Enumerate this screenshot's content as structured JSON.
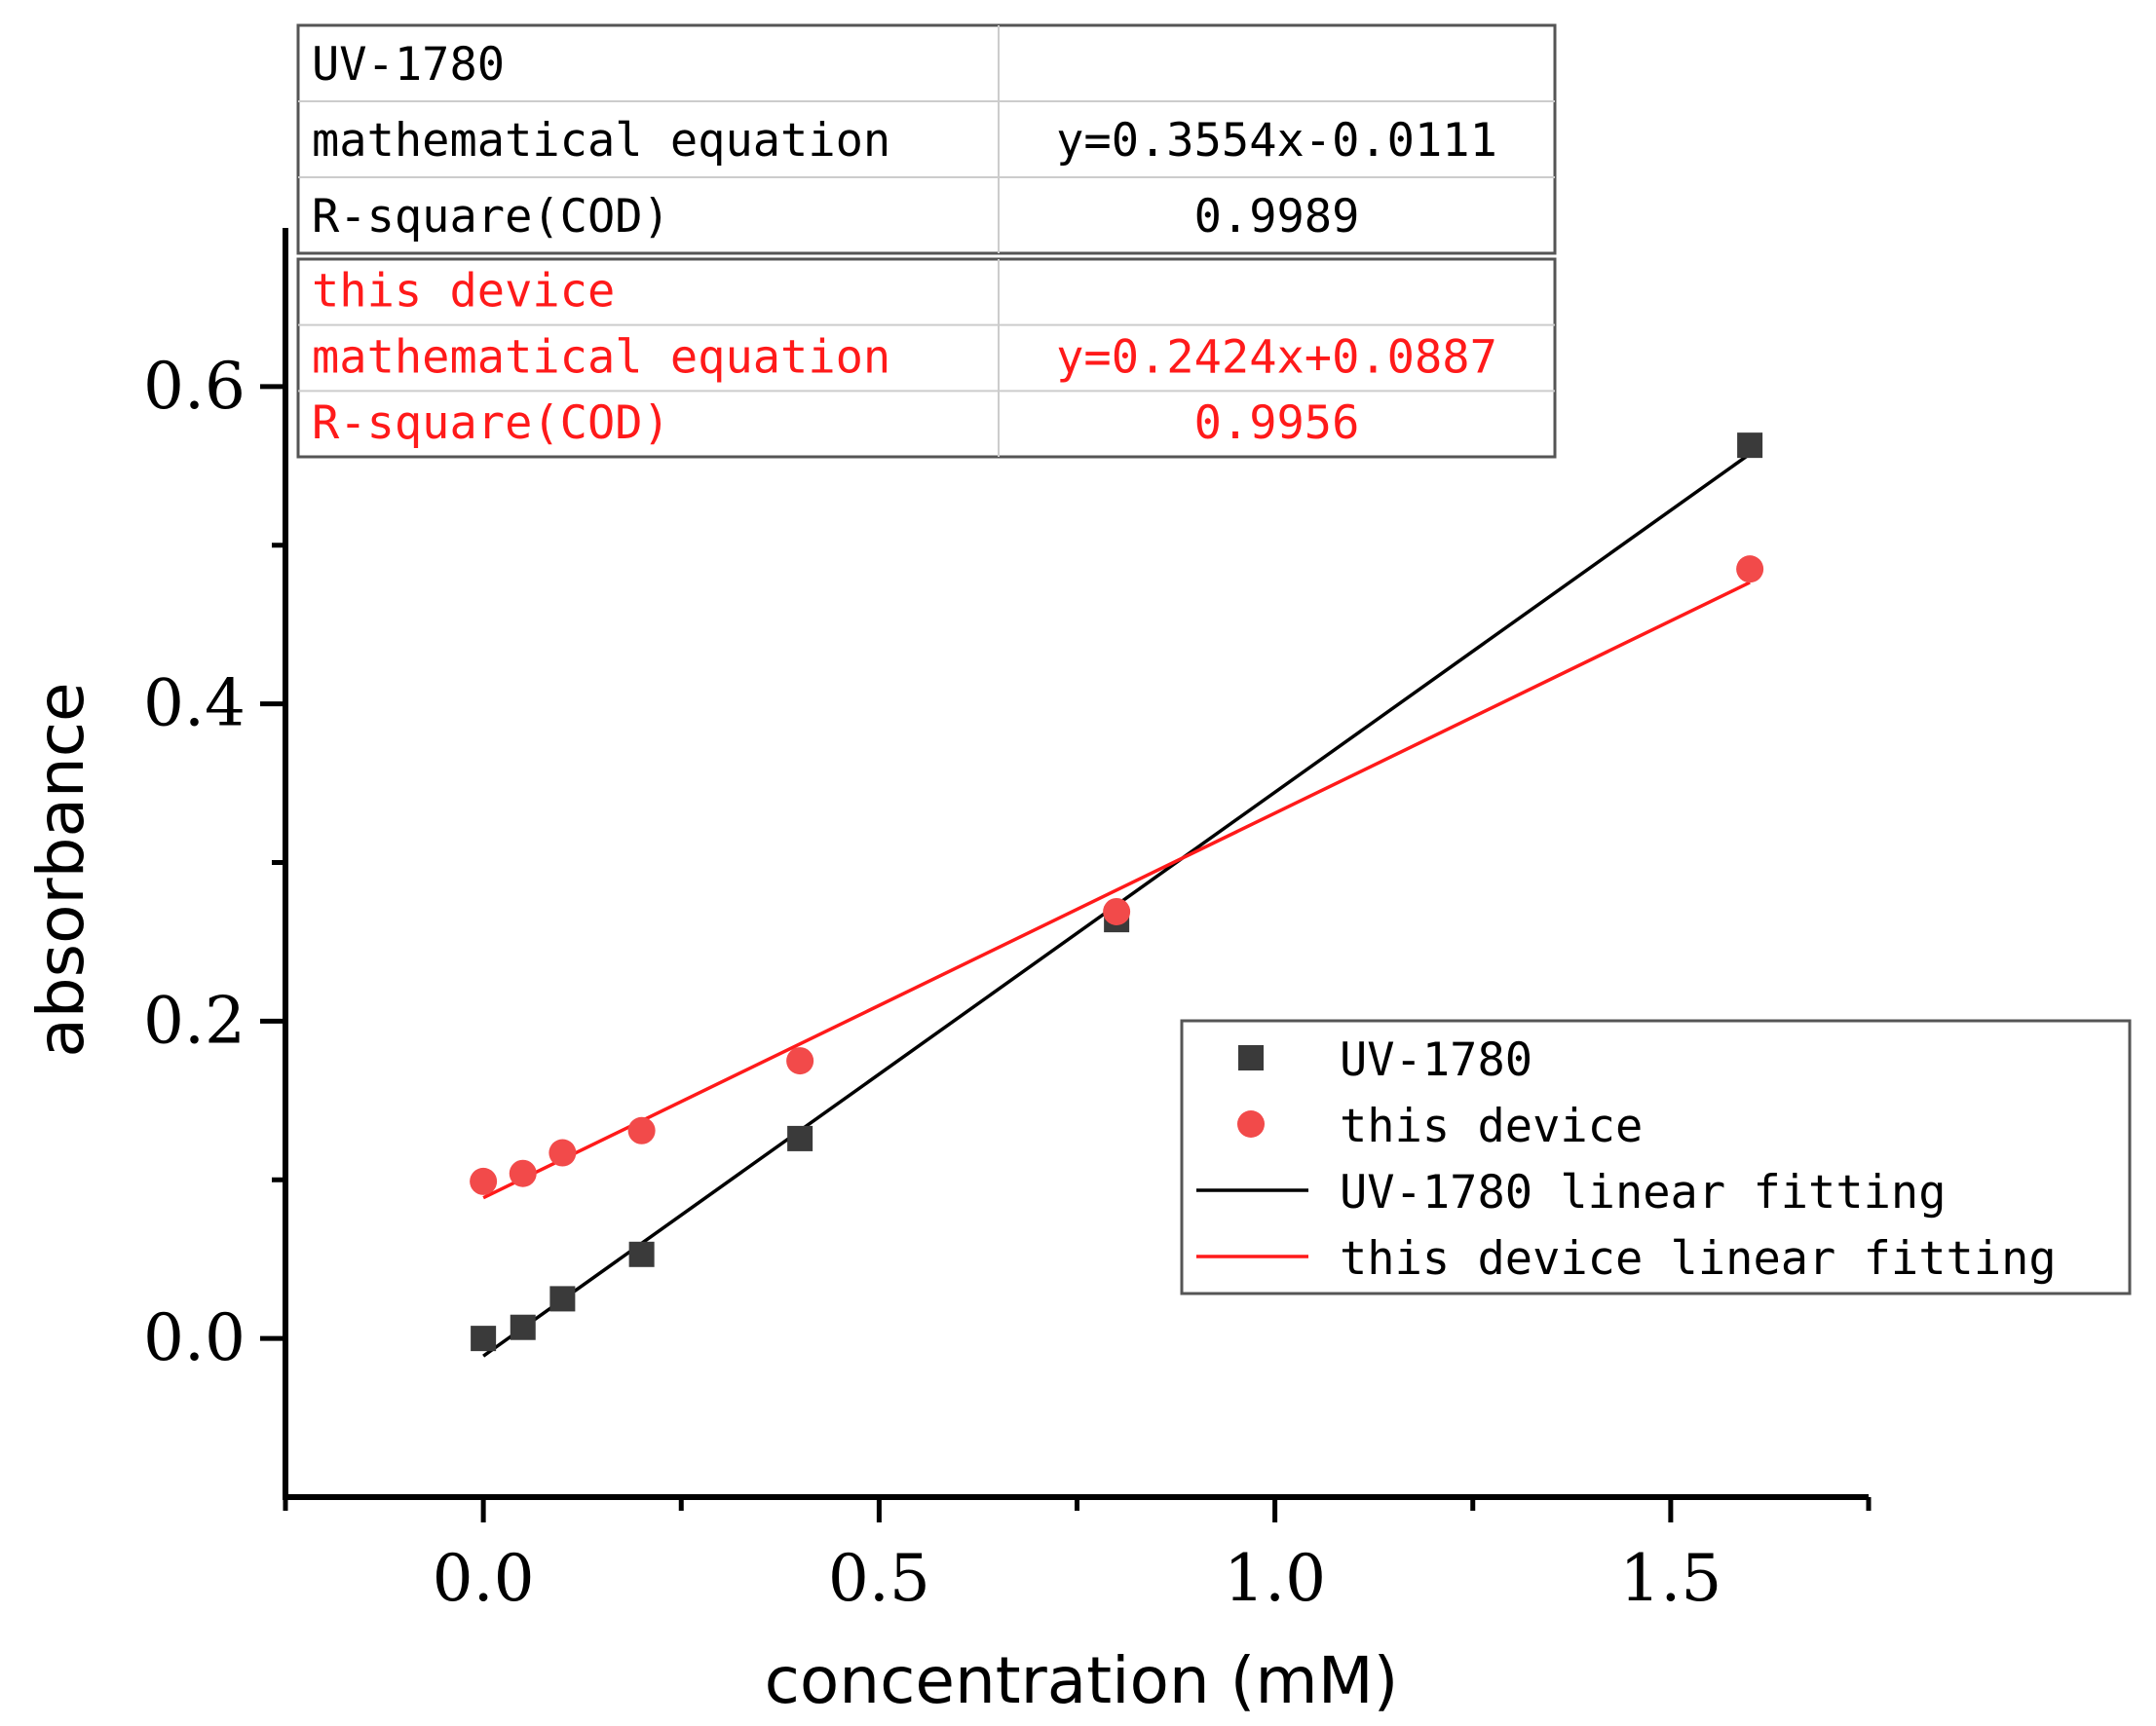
{
  "chart_data": {
    "type": "scatter",
    "xlabel": "concentration (mM)",
    "ylabel": "absorbance",
    "xlim": [
      -0.25,
      1.75
    ],
    "ylim": [
      -0.1,
      0.7
    ],
    "x_ticks": [
      0.0,
      0.5,
      1.0,
      1.5
    ],
    "x_tick_labels": [
      "0.0",
      "0.5",
      "1.0",
      "1.5"
    ],
    "y_ticks": [
      0.0,
      0.2,
      0.4,
      0.6
    ],
    "y_tick_labels": [
      "0.0",
      "0.2",
      "0.4",
      "0.6"
    ],
    "grid": false,
    "legend_position": "center-right",
    "series": [
      {
        "name": "UV-1780",
        "marker": "square",
        "color": "#3a3a3a",
        "x": [
          0.0,
          0.05,
          0.1,
          0.2,
          0.4,
          0.8,
          1.6
        ],
        "y": [
          0.0,
          0.007,
          0.025,
          0.053,
          0.126,
          0.264,
          0.563
        ]
      },
      {
        "name": "this device",
        "marker": "circle",
        "color": "#f24a4a",
        "x": [
          0.0,
          0.05,
          0.1,
          0.2,
          0.4,
          0.8,
          1.6
        ],
        "y": [
          0.099,
          0.104,
          0.117,
          0.131,
          0.175,
          0.269,
          0.485
        ]
      }
    ],
    "fits": [
      {
        "name": "UV-1780 linear fitting",
        "color": "#000000",
        "slope": 0.3554,
        "intercept": -0.0111,
        "x_range": [
          0.0,
          1.6
        ]
      },
      {
        "name": "this device linear fitting",
        "color": "#ff1a1a",
        "slope": 0.2424,
        "intercept": 0.0887,
        "x_range": [
          0.0,
          1.6
        ]
      }
    ],
    "stats_tables": [
      {
        "color": "#000000",
        "rows": [
          [
            "UV-1780",
            ""
          ],
          [
            "mathematical equation",
            "y=0.3554x-0.0111"
          ],
          [
            "R-square(COD)",
            "0.9989"
          ]
        ]
      },
      {
        "color": "#ff1a1a",
        "rows": [
          [
            "this device",
            ""
          ],
          [
            "mathematical equation",
            "y=0.2424x+0.0887"
          ],
          [
            "R-square(COD)",
            "0.9956"
          ]
        ]
      }
    ]
  }
}
